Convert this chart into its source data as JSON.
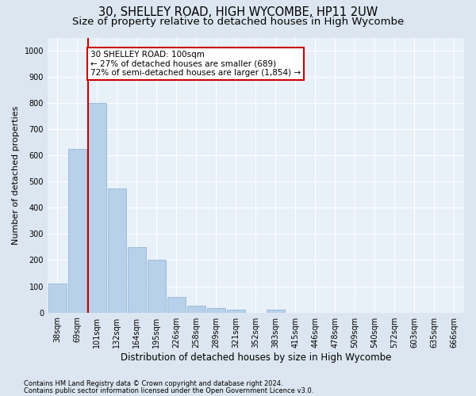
{
  "title": "30, SHELLEY ROAD, HIGH WYCOMBE, HP11 2UW",
  "subtitle": "Size of property relative to detached houses in High Wycombe",
  "xlabel": "Distribution of detached houses by size in High Wycombe",
  "ylabel": "Number of detached properties",
  "categories": [
    "38sqm",
    "69sqm",
    "101sqm",
    "132sqm",
    "164sqm",
    "195sqm",
    "226sqm",
    "258sqm",
    "289sqm",
    "321sqm",
    "352sqm",
    "383sqm",
    "415sqm",
    "446sqm",
    "478sqm",
    "509sqm",
    "540sqm",
    "572sqm",
    "603sqm",
    "635sqm",
    "666sqm"
  ],
  "values": [
    110,
    625,
    800,
    475,
    250,
    200,
    60,
    25,
    18,
    12,
    0,
    10,
    0,
    0,
    0,
    0,
    0,
    0,
    0,
    0,
    0
  ],
  "bar_color": "#b8d0ea",
  "bar_edgecolor": "#93b8d8",
  "vline_x_index": 2,
  "vline_color": "#cc0000",
  "annotation_line1": "30 SHELLEY ROAD: 100sqm",
  "annotation_line2": "← 27% of detached houses are smaller (689)",
  "annotation_line3": "72% of semi-detached houses are larger (1,854) →",
  "annotation_box_edgecolor": "#cc0000",
  "annotation_box_facecolor": "#ffffff",
  "ylim": [
    0,
    1050
  ],
  "yticks": [
    0,
    100,
    200,
    300,
    400,
    500,
    600,
    700,
    800,
    900,
    1000
  ],
  "footnote1": "Contains HM Land Registry data © Crown copyright and database right 2024.",
  "footnote2": "Contains public sector information licensed under the Open Government Licence v3.0.",
  "bg_color": "#dce6f0",
  "plot_bg_color": "#e8f0f8",
  "grid_color": "#ffffff",
  "title_fontsize": 10.5,
  "subtitle_fontsize": 9.5,
  "xlabel_fontsize": 8.5,
  "ylabel_fontsize": 8,
  "tick_fontsize": 7,
  "footnote_fontsize": 6,
  "annotation_fontsize": 7.5
}
